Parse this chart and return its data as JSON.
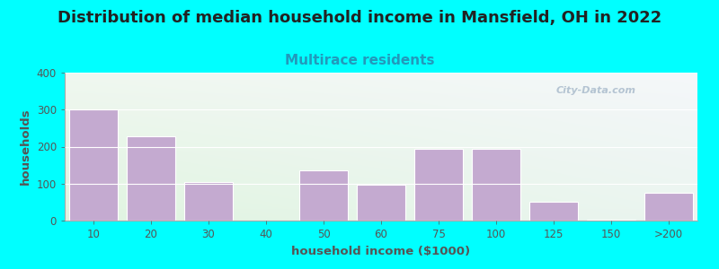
{
  "title": "Distribution of median household income in Mansfield, OH in 2022",
  "subtitle": "Multirace residents",
  "xlabel": "household income ($1000)",
  "ylabel": "households",
  "background_color": "#00FFFF",
  "bar_color": "#c4aad0",
  "bar_edge_color": "#ffffff",
  "categories": [
    "10",
    "20",
    "30",
    "40",
    "50",
    "60",
    "75",
    "100",
    "125",
    "150",
    ">200"
  ],
  "values": [
    300,
    228,
    105,
    0,
    135,
    98,
    193,
    193,
    52,
    3,
    75
  ],
  "ylim": [
    0,
    400
  ],
  "yticks": [
    0,
    100,
    200,
    300,
    400
  ],
  "title_fontsize": 13,
  "subtitle_fontsize": 11,
  "label_fontsize": 9.5,
  "tick_fontsize": 8.5,
  "title_color": "#222222",
  "subtitle_color": "#2299bb",
  "axis_label_color": "#555555",
  "watermark_text": "City-Data.com",
  "watermark_color": "#aabbcc",
  "grid_color": "#ffffff",
  "plot_bg_colors": [
    "#e8f5e0",
    "#f5f5f0",
    "#e0f0f8",
    "#f8f8f5"
  ]
}
